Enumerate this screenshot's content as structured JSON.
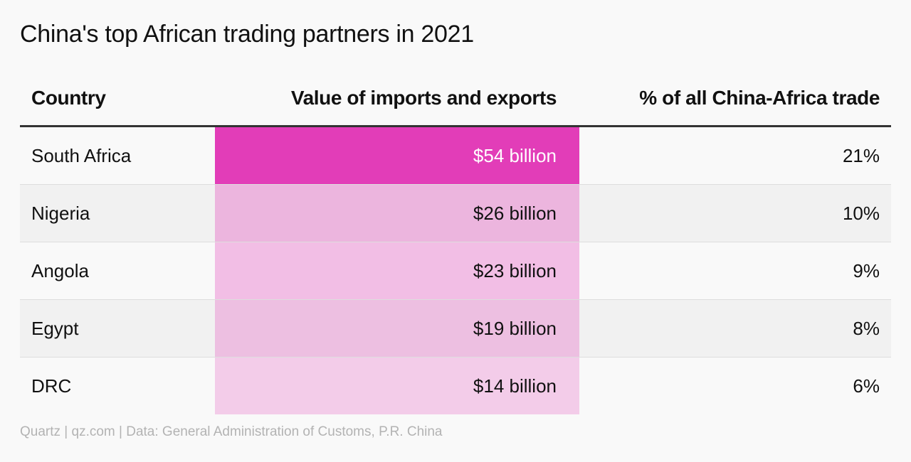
{
  "title": "China's top African trading partners in 2021",
  "source": "Quartz | qz.com | Data: General Administration of Customs, P.R. China",
  "colors": {
    "heat_max": "#e23db8",
    "row_alt": "#f1f1f1",
    "background": "#f9f9f9"
  },
  "chart_data": {
    "type": "table",
    "columns": [
      "Country",
      "Value of imports and exports",
      "% of all China-Africa trade"
    ],
    "rows": [
      {
        "country": "South Africa",
        "value": "$54 billion",
        "value_num": 54,
        "pct": "21%"
      },
      {
        "country": "Nigeria",
        "value": "$26 billion",
        "value_num": 26,
        "pct": "10%"
      },
      {
        "country": "Angola",
        "value": "$23 billion",
        "value_num": 23,
        "pct": "9%"
      },
      {
        "country": "Egypt",
        "value": "$19 billion",
        "value_num": 19,
        "pct": "8%"
      },
      {
        "country": "DRC",
        "value": "$14 billion",
        "value_num": 14,
        "pct": "6%"
      }
    ]
  }
}
